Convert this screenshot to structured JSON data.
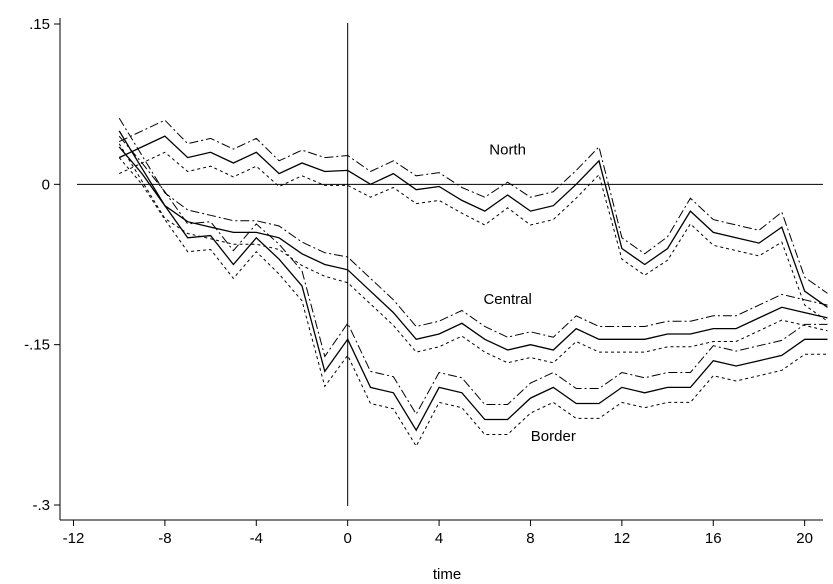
{
  "chart_data": {
    "type": "line",
    "xlabel": "time",
    "ylabel": "",
    "xlim": [
      -12,
      21
    ],
    "ylim": [
      -0.3,
      0.15
    ],
    "x_ticks": [
      {
        "value": -12,
        "label": "-12"
      },
      {
        "value": -8,
        "label": "-8"
      },
      {
        "value": -4,
        "label": "-4"
      },
      {
        "value": 0,
        "label": "0"
      },
      {
        "value": 4,
        "label": "4"
      },
      {
        "value": 8,
        "label": "8"
      },
      {
        "value": 12,
        "label": "12"
      },
      {
        "value": 16,
        "label": "16"
      },
      {
        "value": 20,
        "label": "20"
      }
    ],
    "y_ticks": [
      {
        "value": 0.15,
        "label": ".15"
      },
      {
        "value": 0,
        "label": "0"
      },
      {
        "value": -0.15,
        "label": "-.15"
      },
      {
        "value": -0.3,
        "label": "-.3"
      }
    ],
    "reference_lines": {
      "horizontal": 0,
      "vertical": 0
    },
    "x": [
      -10,
      -9,
      -8,
      -7,
      -6,
      -5,
      -4,
      -3,
      -2,
      -1,
      0,
      1,
      2,
      3,
      4,
      5,
      6,
      7,
      8,
      9,
      10,
      11,
      12,
      13,
      14,
      15,
      16,
      17,
      18,
      19,
      20,
      21
    ],
    "series": [
      {
        "name": "North",
        "label_position": {
          "x": 7,
          "y": 0.028
        },
        "values": [
          0.025,
          0.035,
          0.045,
          0.025,
          0.03,
          0.02,
          0.03,
          0.01,
          0.02,
          0.012,
          0.013,
          0.0,
          0.01,
          -0.005,
          -0.002,
          -0.015,
          -0.025,
          -0.01,
          -0.025,
          -0.02,
          0.0,
          0.022,
          -0.06,
          -0.075,
          -0.06,
          -0.025,
          -0.045,
          -0.05,
          -0.055,
          -0.04,
          -0.1,
          -0.115
        ],
        "upper": [
          0.04,
          0.05,
          0.06,
          0.038,
          0.043,
          0.033,
          0.043,
          0.022,
          0.032,
          0.025,
          0.027,
          0.012,
          0.022,
          0.008,
          0.011,
          -0.003,
          -0.012,
          0.002,
          -0.012,
          -0.007,
          0.013,
          0.035,
          -0.05,
          -0.065,
          -0.049,
          -0.013,
          -0.033,
          -0.038,
          -0.043,
          -0.026,
          -0.087,
          -0.102
        ],
        "lower": [
          0.01,
          0.02,
          0.03,
          0.012,
          0.017,
          0.007,
          0.017,
          -0.002,
          0.008,
          -0.001,
          -0.001,
          -0.012,
          -0.003,
          -0.018,
          -0.015,
          -0.027,
          -0.038,
          -0.022,
          -0.038,
          -0.033,
          -0.013,
          0.009,
          -0.07,
          -0.085,
          -0.071,
          -0.037,
          -0.057,
          -0.062,
          -0.067,
          -0.054,
          -0.113,
          -0.128
        ]
      },
      {
        "name": "Central",
        "label_position": {
          "x": 7,
          "y": -0.112
        },
        "values": [
          0.05,
          0.015,
          -0.02,
          -0.035,
          -0.04,
          -0.045,
          -0.045,
          -0.05,
          -0.065,
          -0.075,
          -0.08,
          -0.1,
          -0.12,
          -0.145,
          -0.14,
          -0.13,
          -0.145,
          -0.155,
          -0.15,
          -0.155,
          -0.135,
          -0.145,
          -0.145,
          -0.145,
          -0.14,
          -0.14,
          -0.135,
          -0.135,
          -0.125,
          -0.115,
          -0.12,
          -0.125
        ],
        "upper": [
          0.062,
          0.027,
          -0.008,
          -0.024,
          -0.029,
          -0.034,
          -0.034,
          -0.039,
          -0.054,
          -0.064,
          -0.068,
          -0.088,
          -0.108,
          -0.133,
          -0.128,
          -0.118,
          -0.133,
          -0.143,
          -0.138,
          -0.143,
          -0.123,
          -0.133,
          -0.133,
          -0.133,
          -0.128,
          -0.128,
          -0.123,
          -0.123,
          -0.113,
          -0.103,
          -0.108,
          -0.113
        ],
        "lower": [
          0.038,
          0.003,
          -0.032,
          -0.046,
          -0.051,
          -0.056,
          -0.056,
          -0.061,
          -0.076,
          -0.086,
          -0.092,
          -0.112,
          -0.132,
          -0.157,
          -0.152,
          -0.142,
          -0.157,
          -0.167,
          -0.162,
          -0.167,
          -0.147,
          -0.157,
          -0.157,
          -0.157,
          -0.152,
          -0.152,
          -0.147,
          -0.147,
          -0.137,
          -0.127,
          -0.132,
          -0.137
        ]
      },
      {
        "name": "Border",
        "label_position": {
          "x": 9,
          "y": -0.24
        },
        "values": [
          0.035,
          0.01,
          -0.02,
          -0.05,
          -0.048,
          -0.075,
          -0.05,
          -0.07,
          -0.095,
          -0.175,
          -0.145,
          -0.19,
          -0.195,
          -0.23,
          -0.19,
          -0.195,
          -0.22,
          -0.22,
          -0.2,
          -0.19,
          -0.205,
          -0.205,
          -0.19,
          -0.195,
          -0.19,
          -0.19,
          -0.165,
          -0.17,
          -0.165,
          -0.16,
          -0.145,
          -0.145
        ],
        "upper": [
          0.045,
          0.02,
          -0.007,
          -0.037,
          -0.035,
          -0.062,
          -0.037,
          -0.056,
          -0.081,
          -0.161,
          -0.13,
          -0.175,
          -0.18,
          -0.215,
          -0.176,
          -0.181,
          -0.206,
          -0.206,
          -0.186,
          -0.176,
          -0.191,
          -0.191,
          -0.176,
          -0.181,
          -0.176,
          -0.176,
          -0.151,
          -0.156,
          -0.151,
          -0.146,
          -0.131,
          -0.131
        ],
        "lower": [
          0.025,
          0.0,
          -0.033,
          -0.063,
          -0.061,
          -0.088,
          -0.063,
          -0.084,
          -0.109,
          -0.189,
          -0.16,
          -0.205,
          -0.21,
          -0.245,
          -0.204,
          -0.209,
          -0.234,
          -0.234,
          -0.214,
          -0.204,
          -0.219,
          -0.219,
          -0.204,
          -0.209,
          -0.204,
          -0.204,
          -0.179,
          -0.184,
          -0.179,
          -0.174,
          -0.159,
          -0.159
        ]
      }
    ]
  }
}
